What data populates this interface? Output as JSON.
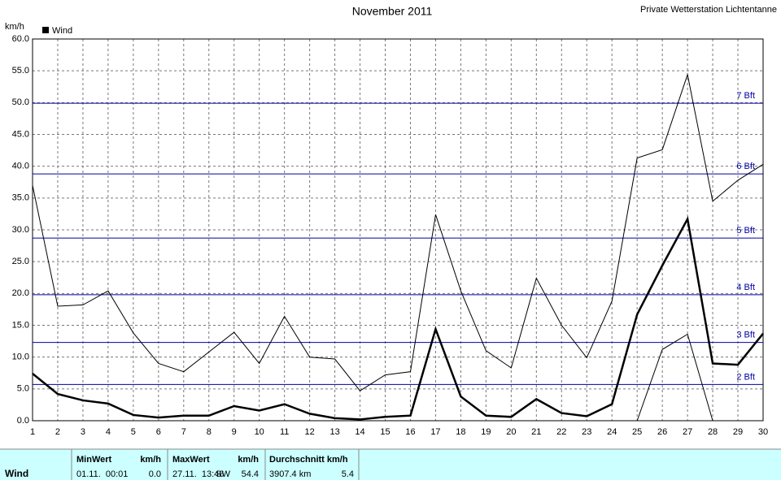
{
  "chart_data": {
    "type": "line",
    "title": "November 2011",
    "subtitle": "Private Wetterstation Lichtentanne",
    "y_label": "km/h",
    "x": [
      1,
      2,
      3,
      4,
      5,
      6,
      7,
      8,
      9,
      10,
      11,
      12,
      13,
      14,
      15,
      16,
      17,
      18,
      19,
      20,
      21,
      22,
      23,
      24,
      25,
      26,
      27,
      28,
      29,
      30
    ],
    "xlim": [
      1,
      30
    ],
    "xticks": [
      1,
      2,
      3,
      4,
      5,
      6,
      7,
      8,
      9,
      10,
      11,
      12,
      13,
      14,
      15,
      16,
      17,
      18,
      19,
      20,
      21,
      22,
      23,
      24,
      25,
      26,
      27,
      28,
      29,
      30
    ],
    "ylim": [
      0,
      60
    ],
    "yticks": [
      {
        "value": 0,
        "label": "0.0"
      },
      {
        "value": 5,
        "label": "5.0"
      },
      {
        "value": 10,
        "label": "10.0"
      },
      {
        "value": 15,
        "label": "15.0"
      },
      {
        "value": 20,
        "label": "20.0"
      },
      {
        "value": 25,
        "label": "25.0"
      },
      {
        "value": 30,
        "label": "30.0"
      },
      {
        "value": 35,
        "label": "35.0"
      },
      {
        "value": 40,
        "label": "40.0"
      },
      {
        "value": 45,
        "label": "45.0"
      },
      {
        "value": 50,
        "label": "50.0"
      },
      {
        "value": 55,
        "label": "55.0"
      },
      {
        "value": 60,
        "label": "60.0"
      }
    ],
    "grid": true,
    "series": [
      {
        "name": "Wind",
        "color": "#000000",
        "width": 2.5,
        "values": [
          7.4,
          4.2,
          3.2,
          2.7,
          0.9,
          0.5,
          0.8,
          0.8,
          2.3,
          1.6,
          2.6,
          1.1,
          0.4,
          0.2,
          0.6,
          0.8,
          14.4,
          3.8,
          0.8,
          0.6,
          3.4,
          1.2,
          0.7,
          2.6,
          16.7,
          24.4,
          31.7,
          9.0,
          8.8,
          13.7
        ]
      },
      {
        "color": "#000000",
        "width": 1,
        "values": [
          37.0,
          18.0,
          18.2,
          20.4,
          13.8,
          9.0,
          7.7,
          10.8,
          13.9,
          9.0,
          16.4,
          10.0,
          9.7,
          4.7,
          7.2,
          7.7,
          32.4,
          20.4,
          11.0,
          8.3,
          22.4,
          15.0,
          9.9,
          18.8,
          41.3,
          42.6,
          54.4,
          34.5,
          37.8,
          40.3
        ]
      },
      {
        "color": "#000000",
        "width": 1,
        "values": [
          null,
          null,
          null,
          null,
          null,
          null,
          null,
          null,
          null,
          null,
          null,
          null,
          null,
          null,
          null,
          null,
          null,
          null,
          null,
          null,
          null,
          null,
          null,
          null,
          0,
          11.2,
          13.6,
          0,
          null,
          null
        ]
      }
    ],
    "reference_lines": [
      {
        "value": 5.7,
        "label": "2 Bft"
      },
      {
        "value": 12.3,
        "label": "3 Bft"
      },
      {
        "value": 19.8,
        "label": "4 Bft"
      },
      {
        "value": 28.7,
        "label": "5 Bft"
      },
      {
        "value": 38.8,
        "label": "6 Bft"
      },
      {
        "value": 49.9,
        "label": "7 Bft"
      }
    ],
    "reference_color": "#0000a0"
  },
  "table": {
    "header": [
      "MinWert",
      "km/h",
      "MaxWert",
      "km/h",
      "Durchschnitt km/h"
    ],
    "row": [
      "Wind",
      "01.11.  00:01",
      "0.0",
      "27.11.  13:46",
      "SW",
      "54.4",
      "3907.4 km",
      "5.4"
    ]
  }
}
